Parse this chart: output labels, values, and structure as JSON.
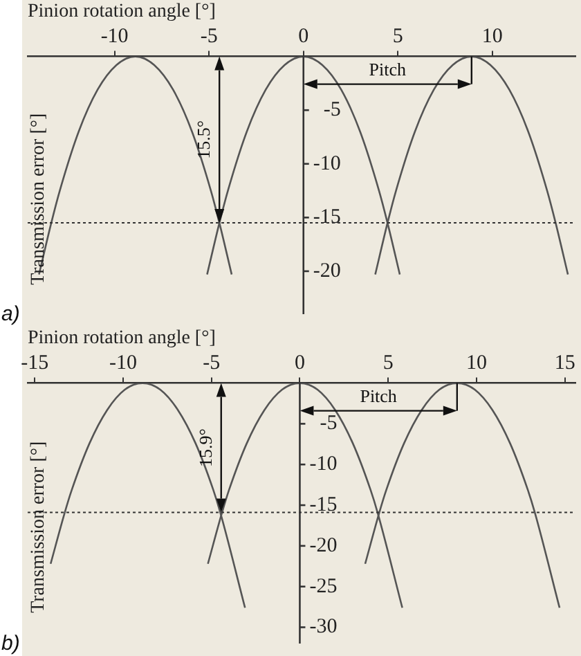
{
  "chart_data": [
    {
      "type": "line",
      "xlabel": "Pinion rotation angle [°]",
      "ylabel": "Transmission error [°]",
      "xlim": [
        -14.6,
        14.4
      ],
      "xticks": [
        -10,
        -5,
        0,
        5,
        10
      ],
      "ylim": [
        -24,
        0
      ],
      "yticks": [
        -5,
        -10,
        -15,
        -20
      ],
      "grid": false,
      "legend": false,
      "marker": "none",
      "line_style": "solid",
      "series": [
        {
          "color": "#555555",
          "x": [
            -14.0,
            -13.35,
            -12.9,
            -11.9,
            -10.9,
            -9.9,
            -8.9,
            -7.9,
            -6.9,
            -5.9,
            -4.9,
            -4.45,
            -3.8
          ],
          "values": [
            -20.3,
            -15.5,
            -12.5,
            -7.0,
            -3.1,
            -0.8,
            0,
            -0.8,
            -3.1,
            -7.0,
            -12.5,
            -15.5,
            -20.3
          ]
        },
        {
          "color": "#555555",
          "x": [
            -5.1,
            -4.45,
            -4,
            -3,
            -2,
            -1,
            0,
            1,
            2,
            3,
            4,
            4.45,
            5.1
          ],
          "values": [
            -20.3,
            -15.5,
            -12.5,
            -7.0,
            -3.1,
            -0.8,
            0,
            -0.8,
            -3.1,
            -7.0,
            -12.5,
            -15.5,
            -20.3
          ]
        },
        {
          "color": "#555555",
          "x": [
            3.8,
            4.45,
            4.9,
            5.9,
            6.9,
            7.9,
            8.9,
            9.9,
            10.9,
            11.9,
            12.9,
            13.35,
            14.0
          ],
          "values": [
            -20.3,
            -15.5,
            -12.5,
            -7.0,
            -3.1,
            -0.8,
            0,
            -0.8,
            -3.1,
            -7.0,
            -12.5,
            -15.5,
            -20.3
          ]
        }
      ],
      "ref_lines": [
        {
          "axis": "y",
          "value": -15.5,
          "line_style": "dotted",
          "color": "#333333"
        }
      ],
      "annotations": [
        "15.5°",
        "Pitch",
        "a)"
      ]
    },
    {
      "type": "line",
      "xlabel": "Pinion rotation angle [°]",
      "ylabel": "Transmission error [°]",
      "xlim": [
        -15.4,
        15.6
      ],
      "xticks": [
        -15,
        -10,
        -5,
        0,
        5,
        10,
        15
      ],
      "ylim": [
        -32,
        0
      ],
      "yticks": [
        -5,
        -10,
        -15,
        -20,
        -25,
        -30
      ],
      "grid": false,
      "legend": false,
      "marker": "none",
      "line_style": "solid",
      "series": [
        {
          "color": "#555555",
          "x": [
            -14.1,
            -13.3,
            -12.9,
            -11.9,
            -10.9,
            -9.9,
            -8.9,
            -7.9,
            -6.9,
            -5.9,
            -4.9,
            -4.5,
            -3.1
          ],
          "values": [
            -22.2,
            -15.9,
            -13.1,
            -7.4,
            -3.3,
            -0.8,
            0,
            -0.8,
            -3.3,
            -7.4,
            -13.1,
            -15.9,
            -27.6
          ]
        },
        {
          "color": "#555555",
          "x": [
            -5.2,
            -4.4,
            -4,
            -3,
            -2,
            -1,
            0,
            1,
            2,
            3,
            4,
            4.4,
            5.8
          ],
          "values": [
            -22.2,
            -15.9,
            -13.1,
            -7.4,
            -3.3,
            -0.8,
            0,
            -0.8,
            -3.3,
            -7.4,
            -13.1,
            -15.9,
            -27.6
          ]
        },
        {
          "color": "#555555",
          "x": [
            3.7,
            4.5,
            4.9,
            5.9,
            6.9,
            7.9,
            8.9,
            9.9,
            10.9,
            11.9,
            12.9,
            13.3,
            14.7
          ],
          "values": [
            -22.2,
            -15.9,
            -13.1,
            -7.4,
            -3.3,
            -0.8,
            0,
            -0.8,
            -3.3,
            -7.4,
            -13.1,
            -15.9,
            -27.6
          ]
        }
      ],
      "ref_lines": [
        {
          "axis": "y",
          "value": -15.9,
          "line_style": "dotted",
          "color": "#333333"
        }
      ],
      "annotations": [
        "15.9°",
        "Pitch",
        "b)"
      ]
    }
  ]
}
